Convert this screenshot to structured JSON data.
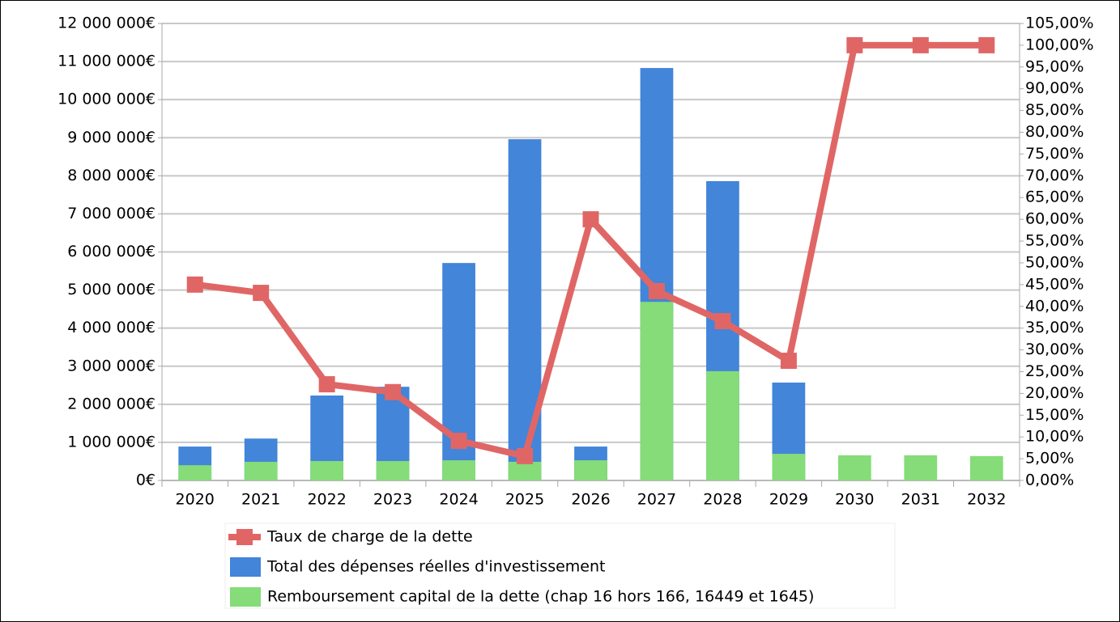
{
  "chart_data": {
    "type": "bar-line",
    "categories": [
      "2020",
      "2021",
      "2022",
      "2023",
      "2024",
      "2025",
      "2026",
      "2027",
      "2028",
      "2029",
      "2030",
      "2031",
      "2032"
    ],
    "series": [
      {
        "name": "Taux de charge de la dette",
        "type": "line",
        "axis": "y2",
        "color": "#e06666",
        "values": [
          45.0,
          43.1,
          22.1,
          20.3,
          9.1,
          5.6,
          60.0,
          43.5,
          36.6,
          27.5,
          100,
          100,
          100
        ]
      },
      {
        "name": "Total des dépenses réelles d'investissement",
        "type": "bar",
        "color": "#4285d9",
        "values": [
          890000,
          1100000,
          2230000,
          2460000,
          5710000,
          8960000,
          890000,
          10830000,
          7860000,
          2570000,
          null,
          null,
          null
        ]
      },
      {
        "name": "Remboursement capital de la dette (chap 16 hors 166, 16449 et 1645)",
        "type": "bar",
        "color": "#85dc78",
        "values": [
          400000,
          490000,
          510000,
          510000,
          530000,
          490000,
          530000,
          4690000,
          2870000,
          700000,
          660000,
          660000,
          640000
        ]
      }
    ],
    "ylim": [
      0,
      12000000
    ],
    "yticks": [
      {
        "value": 0,
        "label": "0€"
      },
      {
        "value": 1000000,
        "label": "1 000 000€"
      },
      {
        "value": 2000000,
        "label": "2 000 000€"
      },
      {
        "value": 3000000,
        "label": "3 000 000€"
      },
      {
        "value": 4000000,
        "label": "4 000 000€"
      },
      {
        "value": 5000000,
        "label": "5 000 000€"
      },
      {
        "value": 6000000,
        "label": "6 000 000€"
      },
      {
        "value": 7000000,
        "label": "7 000 000€"
      },
      {
        "value": 8000000,
        "label": "8 000 000€"
      },
      {
        "value": 9000000,
        "label": "9 000 000€"
      },
      {
        "value": 10000000,
        "label": "10 000 000€"
      },
      {
        "value": 11000000,
        "label": "11 000 000€"
      },
      {
        "value": 12000000,
        "label": "12 000 000€"
      }
    ],
    "y2lim": [
      0,
      105
    ],
    "y2ticks": [
      {
        "value": 0,
        "label": "0,00%"
      },
      {
        "value": 5,
        "label": "5,00%"
      },
      {
        "value": 10,
        "label": "10,00%"
      },
      {
        "value": 15,
        "label": "15,00%"
      },
      {
        "value": 20,
        "label": "20,00%"
      },
      {
        "value": 25,
        "label": "25,00%"
      },
      {
        "value": 30,
        "label": "30,00%"
      },
      {
        "value": 35,
        "label": "35,00%"
      },
      {
        "value": 40,
        "label": "40,00%"
      },
      {
        "value": 45,
        "label": "45,00%"
      },
      {
        "value": 50,
        "label": "50,00%"
      },
      {
        "value": 55,
        "label": "55,00%"
      },
      {
        "value": 60,
        "label": "60,00%"
      },
      {
        "value": 65,
        "label": "65,00%"
      },
      {
        "value": 70,
        "label": "70,00%"
      },
      {
        "value": 75,
        "label": "75,00%"
      },
      {
        "value": 80,
        "label": "80,00%"
      },
      {
        "value": 85,
        "label": "85,00%"
      },
      {
        "value": 90,
        "label": "90,00%"
      },
      {
        "value": 95,
        "label": "95,00%"
      },
      {
        "value": 100,
        "label": "100,00%"
      },
      {
        "value": 105,
        "label": "105,00%"
      }
    ],
    "grid": true,
    "legend": "bottom"
  }
}
